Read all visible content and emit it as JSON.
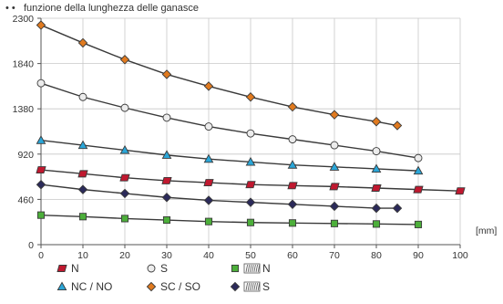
{
  "header": {
    "subtitle": "funzione della lunghezza delle ganasce",
    "subtitle_prefix": "• •"
  },
  "chart_data": {
    "type": "line",
    "subtitle": "funzione della lunghezza delle ganasce",
    "xlabel": "[mm]",
    "ylabel": "",
    "xlim": [
      0,
      100
    ],
    "ylim": [
      0,
      2300
    ],
    "xticks": [
      0,
      10,
      20,
      30,
      40,
      50,
      60,
      70,
      80,
      90,
      100
    ],
    "yticks": [
      0,
      460,
      920,
      1380,
      1840,
      2300
    ],
    "grid": true,
    "legend_position": "bottom",
    "series": [
      {
        "name": "SC / SO",
        "marker": "diamond",
        "color": "#e07a1f",
        "x": [
          0,
          10,
          20,
          30,
          40,
          50,
          60,
          70,
          80,
          85
        ],
        "y": [
          2230,
          2050,
          1880,
          1730,
          1610,
          1500,
          1400,
          1320,
          1250,
          1210
        ]
      },
      {
        "name": "S",
        "marker": "circle",
        "color": "#ececec",
        "x": [
          0,
          10,
          20,
          30,
          40,
          50,
          60,
          70,
          80,
          90
        ],
        "y": [
          1640,
          1500,
          1390,
          1290,
          1200,
          1130,
          1070,
          1010,
          950,
          880
        ]
      },
      {
        "name": "NC / NO",
        "marker": "triangle",
        "color": "#2aa6d8",
        "x": [
          0,
          10,
          20,
          30,
          40,
          50,
          60,
          70,
          80,
          90
        ],
        "y": [
          1060,
          1010,
          960,
          910,
          870,
          840,
          810,
          790,
          770,
          750
        ]
      },
      {
        "name": "N",
        "marker": "parallelogram",
        "color": "#c0182f",
        "x": [
          0,
          10,
          20,
          30,
          40,
          50,
          60,
          70,
          80,
          90,
          100
        ],
        "y": [
          760,
          720,
          680,
          650,
          630,
          610,
          600,
          590,
          575,
          560,
          545
        ]
      },
      {
        "name": "S",
        "prefix_icon": "spring-icon",
        "marker": "diamond",
        "color": "#2b2a5a",
        "x": [
          0,
          10,
          20,
          30,
          40,
          50,
          60,
          70,
          80,
          85
        ],
        "y": [
          610,
          560,
          520,
          480,
          450,
          430,
          410,
          390,
          370,
          370
        ]
      },
      {
        "name": "N",
        "prefix_icon": "spring-icon",
        "marker": "square",
        "color": "#4caf3a",
        "x": [
          0,
          10,
          20,
          30,
          40,
          50,
          60,
          70,
          80,
          90
        ],
        "y": [
          300,
          285,
          265,
          250,
          235,
          225,
          220,
          215,
          210,
          205
        ]
      }
    ]
  },
  "legend": {
    "items": [
      {
        "label": "N",
        "marker": "parallelogram",
        "color": "#c0182f",
        "icon": "parallelogram-marker-icon"
      },
      {
        "label": "S",
        "marker": "circle",
        "color": "#ececec",
        "icon": "circle-marker-icon"
      },
      {
        "label": "N",
        "marker": "square",
        "color": "#4caf3a",
        "icon": "square-marker-icon",
        "prefix_icon": "spring-icon"
      },
      {
        "label": "NC / NO",
        "marker": "triangle",
        "color": "#2aa6d8",
        "icon": "triangle-marker-icon"
      },
      {
        "label": "SC / SO",
        "marker": "diamond",
        "color": "#e07a1f",
        "icon": "diamond-marker-icon"
      },
      {
        "label": "S",
        "marker": "diamond",
        "color": "#2b2a5a",
        "icon": "diamond-marker-icon",
        "prefix_icon": "spring-icon"
      }
    ]
  }
}
